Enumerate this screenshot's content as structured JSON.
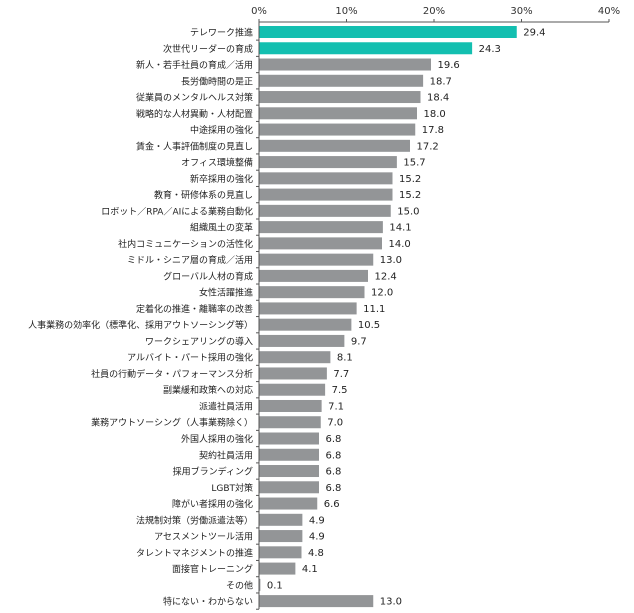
{
  "chart_data": {
    "type": "bar",
    "orientation": "horizontal",
    "title": "",
    "xlabel": "",
    "ylabel": "",
    "xlim": [
      0,
      40
    ],
    "ticks": [
      "0%",
      "10%",
      "20%",
      "30%",
      "40%"
    ],
    "tick_values": [
      0,
      10,
      20,
      30,
      40
    ],
    "axis_position": "top",
    "grid": false,
    "legend": "none",
    "colors": {
      "highlight": "#13bfb0",
      "default": "#939597",
      "axis": "#555555"
    },
    "highlighted_count": 2,
    "categories": [
      "テレワーク推進",
      "次世代リーダーの育成",
      "新人・若手社員の育成／活用",
      "長労働時間の是正",
      "従業員のメンタルヘルス対策",
      "戦略的な人材異動・人材配置",
      "中途採用の強化",
      "賃金・人事評価制度の見直し",
      "オフィス環境整備",
      "新卒採用の強化",
      "教育・研修体系の見直し",
      "ロボット／RPA／AIによる業務自動化",
      "組織風土の変革",
      "社内コミュニケーションの活性化",
      "ミドル・シニア層の育成／活用",
      "グローバル人材の育成",
      "女性活躍推進",
      "定着化の推進・離職率の改善",
      "人事業務の効率化（標準化、採用アウトソーシング等）",
      "ワークシェアリングの導入",
      "アルバイト・パート採用の強化",
      "社員の行動データ・パフォーマンス分析",
      "副業緩和政策への対応",
      "派遣社員活用",
      "業務アウトソーシング（人事業務除く）",
      "外国人採用の強化",
      "契約社員活用",
      "採用ブランディング",
      "LGBT対策",
      "障がい者採用の強化",
      "法規制対策（労働派遣法等）",
      "アセスメントツール活用",
      "タレントマネジメントの推進",
      "面接官トレーニング",
      "その他",
      "特にない・わからない"
    ],
    "values": [
      29.4,
      24.3,
      19.6,
      18.7,
      18.4,
      18.0,
      17.8,
      17.2,
      15.7,
      15.2,
      15.2,
      15.0,
      14.1,
      14.0,
      13.0,
      12.4,
      12.0,
      11.1,
      10.5,
      9.7,
      8.1,
      7.7,
      7.5,
      7.1,
      7.0,
      6.8,
      6.8,
      6.8,
      6.8,
      6.6,
      4.9,
      4.9,
      4.8,
      4.1,
      0.1,
      13.0
    ],
    "value_labels": [
      "29.4",
      "24.3",
      "19.6",
      "18.7",
      "18.4",
      "18.0",
      "17.8",
      "17.2",
      "15.7",
      "15.2",
      "15.2",
      "15.0",
      "14.1",
      "14.0",
      "13.0",
      "12.4",
      "12.0",
      "11.1",
      "10.5",
      "9.7",
      "8.1",
      "7.7",
      "7.5",
      "7.1",
      "7.0",
      "6.8",
      "6.8",
      "6.8",
      "6.8",
      "6.6",
      "4.9",
      "4.9",
      "4.8",
      "4.1",
      "0.1",
      "13.0"
    ]
  }
}
